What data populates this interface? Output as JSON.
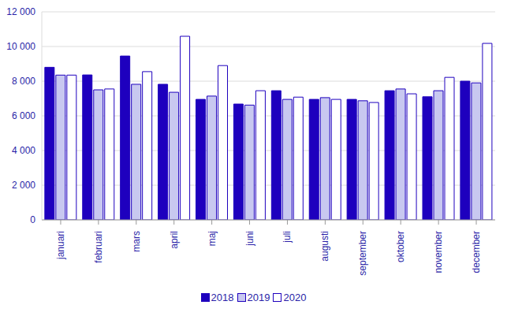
{
  "chart_data": {
    "type": "bar",
    "categories": [
      "januari",
      "februari",
      "mars",
      "april",
      "maj",
      "juni",
      "juli",
      "augusti",
      "september",
      "oktober",
      "november",
      "december"
    ],
    "series": [
      {
        "name": "2018",
        "color": "#1e00be",
        "values": [
          8800,
          8360,
          9450,
          7820,
          6950,
          6680,
          7450,
          6950,
          6950,
          7450,
          7100,
          8000
        ]
      },
      {
        "name": "2019",
        "color": "#c8c8f0",
        "values": [
          8350,
          7500,
          7820,
          7360,
          7140,
          6620,
          6950,
          7050,
          6870,
          7550,
          7450,
          7900
        ]
      },
      {
        "name": "2020",
        "color": "#ffffff",
        "values": [
          8350,
          7550,
          8550,
          10590,
          8900,
          7450,
          7080,
          6950,
          6770,
          7270,
          8220,
          10180
        ]
      }
    ],
    "ylim": [
      0,
      12000
    ],
    "yticks": [
      0,
      {
        "value": 2000,
        "label": "2 000"
      },
      {
        "value": 4000,
        "label": "4 000"
      },
      {
        "value": 6000,
        "label": "6 000"
      },
      {
        "value": 8000,
        "label": "8 000"
      },
      {
        "value": 10000,
        "label": "10 000"
      },
      {
        "value": 12000,
        "label": "12 000"
      }
    ],
    "grid": true,
    "legend": "bottom"
  }
}
